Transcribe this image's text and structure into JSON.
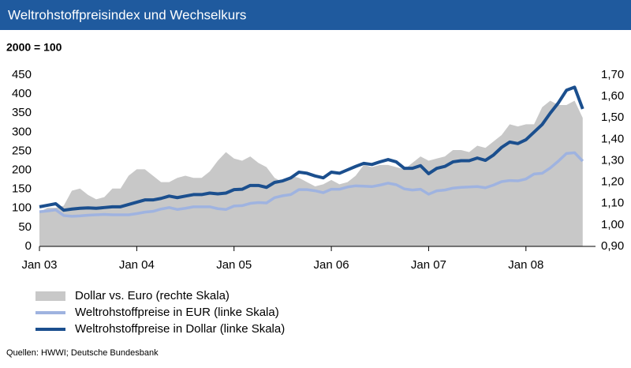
{
  "chart_data": {
    "type": "line",
    "title": "Weltrohstoffpreisindex und Wechselkurs",
    "subtitle": "2000 = 100",
    "source": "Quellen: HWWI; Deutsche Bundesbank",
    "categories": [
      "Jan 03",
      null,
      null,
      null,
      null,
      null,
      null,
      null,
      null,
      null,
      null,
      null,
      "Jan 04",
      null,
      null,
      null,
      null,
      null,
      null,
      null,
      null,
      null,
      null,
      null,
      "Jan 05",
      null,
      null,
      null,
      null,
      null,
      null,
      null,
      null,
      null,
      null,
      null,
      "Jan 06",
      null,
      null,
      null,
      null,
      null,
      null,
      null,
      null,
      null,
      null,
      null,
      "Jan 07",
      null,
      null,
      null,
      null,
      null,
      null,
      null,
      null,
      null,
      null,
      null,
      "Jan 08",
      null,
      null,
      null,
      null,
      null,
      null,
      null
    ],
    "ylim": [
      0,
      450
    ],
    "yticks": [
      0,
      50,
      100,
      150,
      200,
      250,
      300,
      350,
      400,
      450
    ],
    "y2lim": [
      0.9,
      1.7
    ],
    "y2ticks": [
      {
        "value": 0.9,
        "label": "0,90"
      },
      {
        "value": 1.0,
        "label": "1,00"
      },
      {
        "value": 1.1,
        "label": "1,10"
      },
      {
        "value": 1.2,
        "label": "1,20"
      },
      {
        "value": 1.3,
        "label": "1,30"
      },
      {
        "value": 1.4,
        "label": "1,40"
      },
      {
        "value": 1.5,
        "label": "1,50"
      },
      {
        "value": 1.6,
        "label": "1,60"
      },
      {
        "value": 1.7,
        "label": "1,70"
      }
    ],
    "series": [
      {
        "name": "Dollar vs. Euro (rechte Skala)",
        "color": "#c8c8c8",
        "axis": "y2",
        "kind": "area",
        "values": [
          1.06,
          1.08,
          1.08,
          1.09,
          1.16,
          1.17,
          1.14,
          1.12,
          1.13,
          1.17,
          1.17,
          1.23,
          1.26,
          1.26,
          1.23,
          1.2,
          1.2,
          1.22,
          1.23,
          1.22,
          1.22,
          1.25,
          1.3,
          1.34,
          1.31,
          1.3,
          1.32,
          1.29,
          1.27,
          1.22,
          1.2,
          1.23,
          1.22,
          1.2,
          1.18,
          1.19,
          1.21,
          1.19,
          1.2,
          1.23,
          1.28,
          1.27,
          1.28,
          1.28,
          1.27,
          1.26,
          1.29,
          1.32,
          1.3,
          1.31,
          1.32,
          1.35,
          1.35,
          1.34,
          1.37,
          1.36,
          1.39,
          1.42,
          1.47,
          1.46,
          1.47,
          1.47,
          1.55,
          1.58,
          1.56,
          1.56,
          1.58,
          1.5
        ]
      },
      {
        "name": "Weltrohstoffpreise in EUR (linke Skala)",
        "color": "#9fb3e0",
        "values": [
          91,
          93,
          96,
          81,
          79,
          80,
          82,
          83,
          84,
          83,
          83,
          83,
          86,
          90,
          92,
          98,
          102,
          97,
          100,
          104,
          104,
          104,
          99,
          97,
          106,
          107,
          113,
          115,
          114,
          128,
          133,
          136,
          149,
          149,
          146,
          141,
          150,
          150,
          156,
          159,
          158,
          157,
          161,
          166,
          162,
          151,
          148,
          150,
          137,
          146,
          148,
          153,
          155,
          156,
          157,
          154,
          161,
          170,
          173,
          172,
          177,
          190,
          192,
          206,
          224,
          244,
          246,
          224
        ]
      },
      {
        "name": "Weltrohstoffpreise in Dollar (linke Skala)",
        "color": "#1b4f8e",
        "values": [
          104,
          108,
          112,
          95,
          98,
          100,
          101,
          100,
          102,
          104,
          104,
          110,
          116,
          122,
          122,
          126,
          132,
          128,
          132,
          136,
          136,
          140,
          138,
          140,
          149,
          150,
          160,
          160,
          155,
          168,
          172,
          180,
          195,
          192,
          185,
          180,
          195,
          192,
          201,
          210,
          218,
          215,
          222,
          228,
          222,
          205,
          205,
          212,
          191,
          205,
          210,
          222,
          225,
          225,
          232,
          226,
          240,
          260,
          274,
          270,
          280,
          300,
          320,
          350,
          377,
          410,
          418,
          361
        ]
      }
    ]
  }
}
